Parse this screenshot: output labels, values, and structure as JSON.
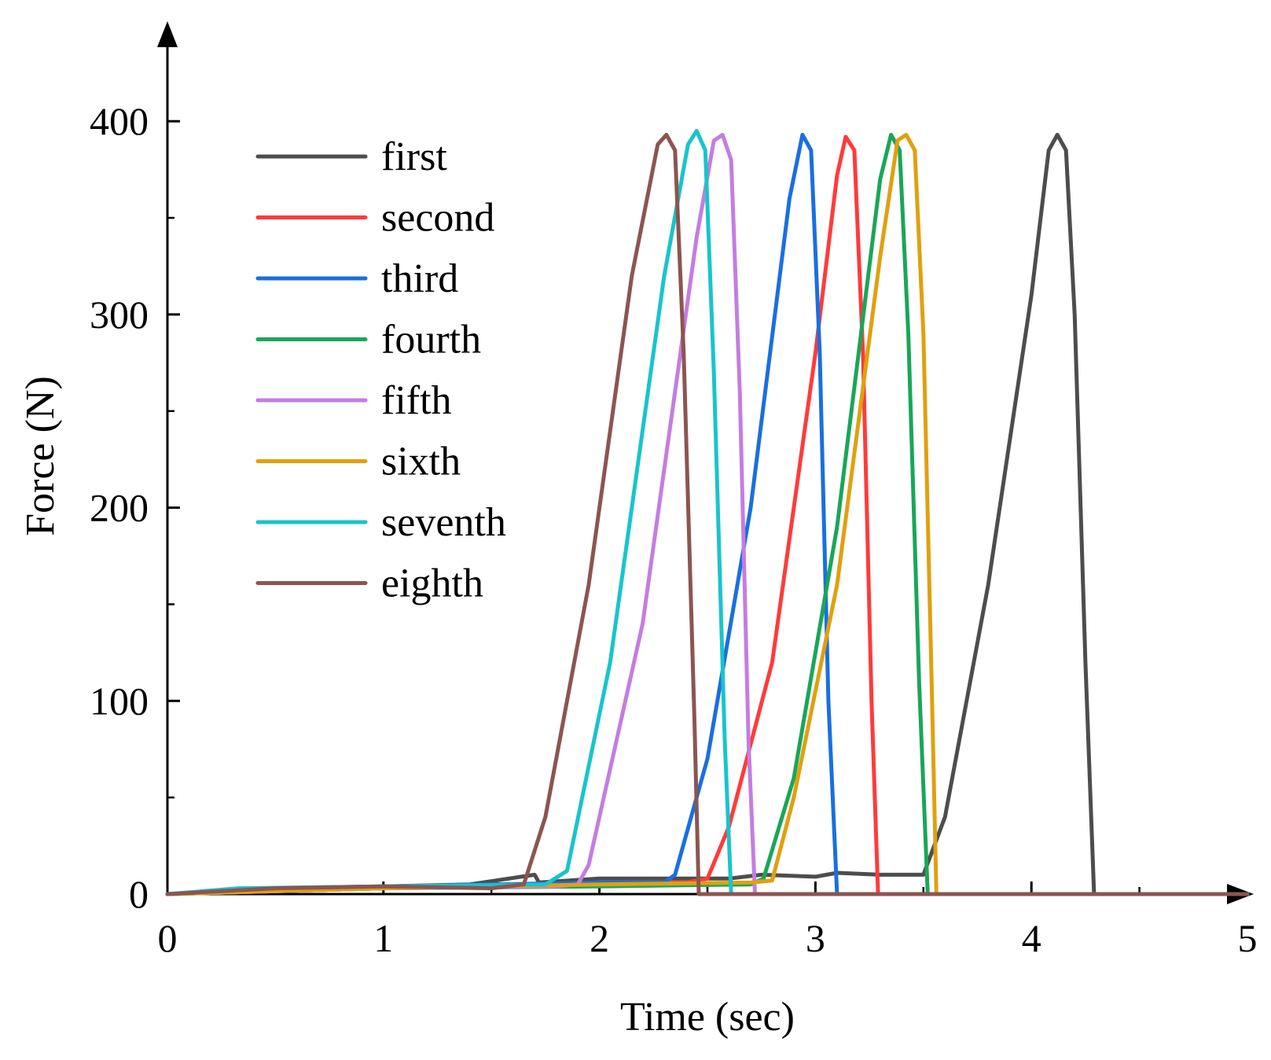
{
  "chart_data": {
    "type": "line",
    "title": "",
    "xlabel": "Time (sec)",
    "ylabel": "Force (N)",
    "xlim": [
      0,
      5
    ],
    "ylim": [
      0,
      450
    ],
    "x_ticks": [
      "0",
      "1",
      "2",
      "3",
      "4",
      "5"
    ],
    "y_ticks": [
      "0",
      "100",
      "200",
      "300",
      "400"
    ],
    "grid": false,
    "legend_position": "top-left",
    "series": [
      {
        "name": "first",
        "color": "#4d4d4d",
        "points": [
          [
            0,
            0
          ],
          [
            0.5,
            3
          ],
          [
            1,
            4
          ],
          [
            1.4,
            5
          ],
          [
            1.7,
            10
          ],
          [
            1.72,
            6
          ],
          [
            2,
            8
          ],
          [
            2.6,
            8
          ],
          [
            2.75,
            10
          ],
          [
            3,
            9
          ],
          [
            3.1,
            11
          ],
          [
            3.3,
            10
          ],
          [
            3.5,
            10
          ],
          [
            3.6,
            40
          ],
          [
            3.8,
            160
          ],
          [
            4.0,
            310
          ],
          [
            4.08,
            385
          ],
          [
            4.12,
            393
          ],
          [
            4.16,
            385
          ],
          [
            4.2,
            300
          ],
          [
            4.25,
            120
          ],
          [
            4.29,
            0
          ],
          [
            5,
            0
          ]
        ]
      },
      {
        "name": "second",
        "color": "#ff3b3b",
        "points": [
          [
            0,
            0
          ],
          [
            1,
            3
          ],
          [
            2,
            6
          ],
          [
            2.4,
            6
          ],
          [
            2.5,
            8
          ],
          [
            2.6,
            35
          ],
          [
            2.8,
            120
          ],
          [
            3.0,
            280
          ],
          [
            3.1,
            372
          ],
          [
            3.14,
            392
          ],
          [
            3.18,
            385
          ],
          [
            3.22,
            280
          ],
          [
            3.26,
            100
          ],
          [
            3.29,
            0
          ],
          [
            5,
            0
          ]
        ]
      },
      {
        "name": "third",
        "color": "#1a6fe0",
        "points": [
          [
            0,
            0
          ],
          [
            0.45,
            3
          ],
          [
            1,
            4
          ],
          [
            2,
            6
          ],
          [
            2.3,
            6
          ],
          [
            2.35,
            10
          ],
          [
            2.5,
            70
          ],
          [
            2.7,
            200
          ],
          [
            2.88,
            360
          ],
          [
            2.94,
            393
          ],
          [
            2.98,
            385
          ],
          [
            3.02,
            280
          ],
          [
            3.06,
            100
          ],
          [
            3.1,
            0
          ],
          [
            5,
            0
          ]
        ]
      },
      {
        "name": "fourth",
        "color": "#1aa658",
        "points": [
          [
            0,
            0
          ],
          [
            1,
            3
          ],
          [
            2,
            4
          ],
          [
            2.7,
            5
          ],
          [
            2.76,
            8
          ],
          [
            2.9,
            60
          ],
          [
            3.1,
            190
          ],
          [
            3.3,
            370
          ],
          [
            3.35,
            393
          ],
          [
            3.39,
            385
          ],
          [
            3.43,
            290
          ],
          [
            3.48,
            110
          ],
          [
            3.52,
            0
          ],
          [
            5,
            0
          ]
        ]
      },
      {
        "name": "fifth",
        "color": "#c47de0",
        "points": [
          [
            0,
            0
          ],
          [
            1,
            3
          ],
          [
            1.8,
            4
          ],
          [
            1.9,
            5
          ],
          [
            1.95,
            15
          ],
          [
            2.2,
            140
          ],
          [
            2.45,
            340
          ],
          [
            2.53,
            390
          ],
          [
            2.57,
            393
          ],
          [
            2.61,
            380
          ],
          [
            2.65,
            260
          ],
          [
            2.69,
            80
          ],
          [
            2.72,
            0
          ],
          [
            5,
            0
          ]
        ]
      },
      {
        "name": "sixth",
        "color": "#e0a010",
        "points": [
          [
            0,
            0
          ],
          [
            1,
            3
          ],
          [
            2,
            5
          ],
          [
            2.7,
            6
          ],
          [
            2.8,
            7
          ],
          [
            2.9,
            50
          ],
          [
            3.1,
            160
          ],
          [
            3.3,
            330
          ],
          [
            3.38,
            390
          ],
          [
            3.42,
            393
          ],
          [
            3.46,
            385
          ],
          [
            3.5,
            290
          ],
          [
            3.54,
            100
          ],
          [
            3.56,
            0
          ],
          [
            5,
            0
          ]
        ]
      },
      {
        "name": "seventh",
        "color": "#19c4cc",
        "points": [
          [
            0,
            0
          ],
          [
            0.33,
            3
          ],
          [
            1,
            4
          ],
          [
            1.75,
            5
          ],
          [
            1.85,
            12
          ],
          [
            2.05,
            120
          ],
          [
            2.3,
            320
          ],
          [
            2.41,
            388
          ],
          [
            2.45,
            395
          ],
          [
            2.49,
            385
          ],
          [
            2.53,
            270
          ],
          [
            2.58,
            80
          ],
          [
            2.61,
            0
          ],
          [
            5,
            0
          ]
        ]
      },
      {
        "name": "eighth",
        "color": "#8c5550",
        "points": [
          [
            0,
            0
          ],
          [
            0.5,
            3
          ],
          [
            1,
            4
          ],
          [
            1.5,
            3
          ],
          [
            1.65,
            5
          ],
          [
            1.75,
            40
          ],
          [
            1.95,
            160
          ],
          [
            2.15,
            320
          ],
          [
            2.27,
            388
          ],
          [
            2.31,
            393
          ],
          [
            2.35,
            385
          ],
          [
            2.39,
            280
          ],
          [
            2.44,
            90
          ],
          [
            2.46,
            0
          ],
          [
            5,
            0
          ]
        ]
      }
    ]
  }
}
